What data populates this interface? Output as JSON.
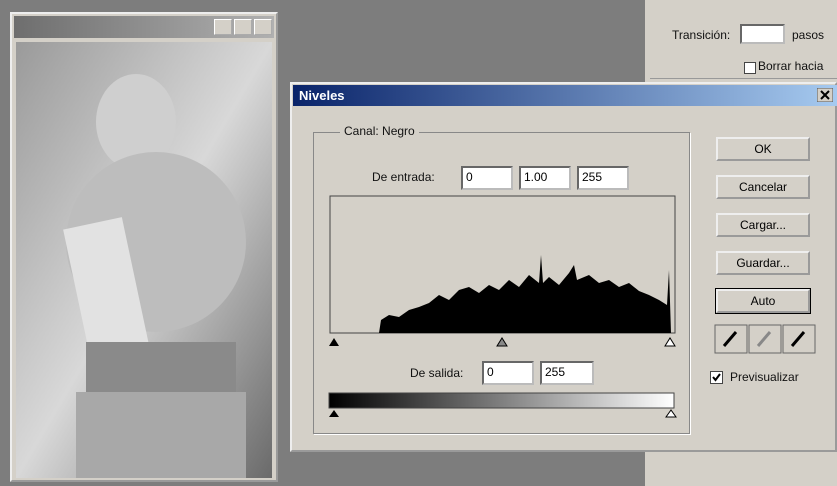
{
  "background_panel": {
    "transition_label": "Transición:",
    "steps_label": "pasos",
    "erase_label": "Borrar hacia"
  },
  "dialog": {
    "title": "Niveles",
    "channel_label": "Canal:",
    "channel_value": "Negro",
    "input_label": "De entrada:",
    "input_values": [
      "0",
      "1.00",
      "255"
    ],
    "output_label": "De salida:",
    "output_values": [
      "0",
      "255"
    ],
    "buttons": [
      "OK",
      "Cancelar",
      "Cargar...",
      "Guardar...",
      "Auto"
    ],
    "preview_label": "Previsualizar"
  }
}
